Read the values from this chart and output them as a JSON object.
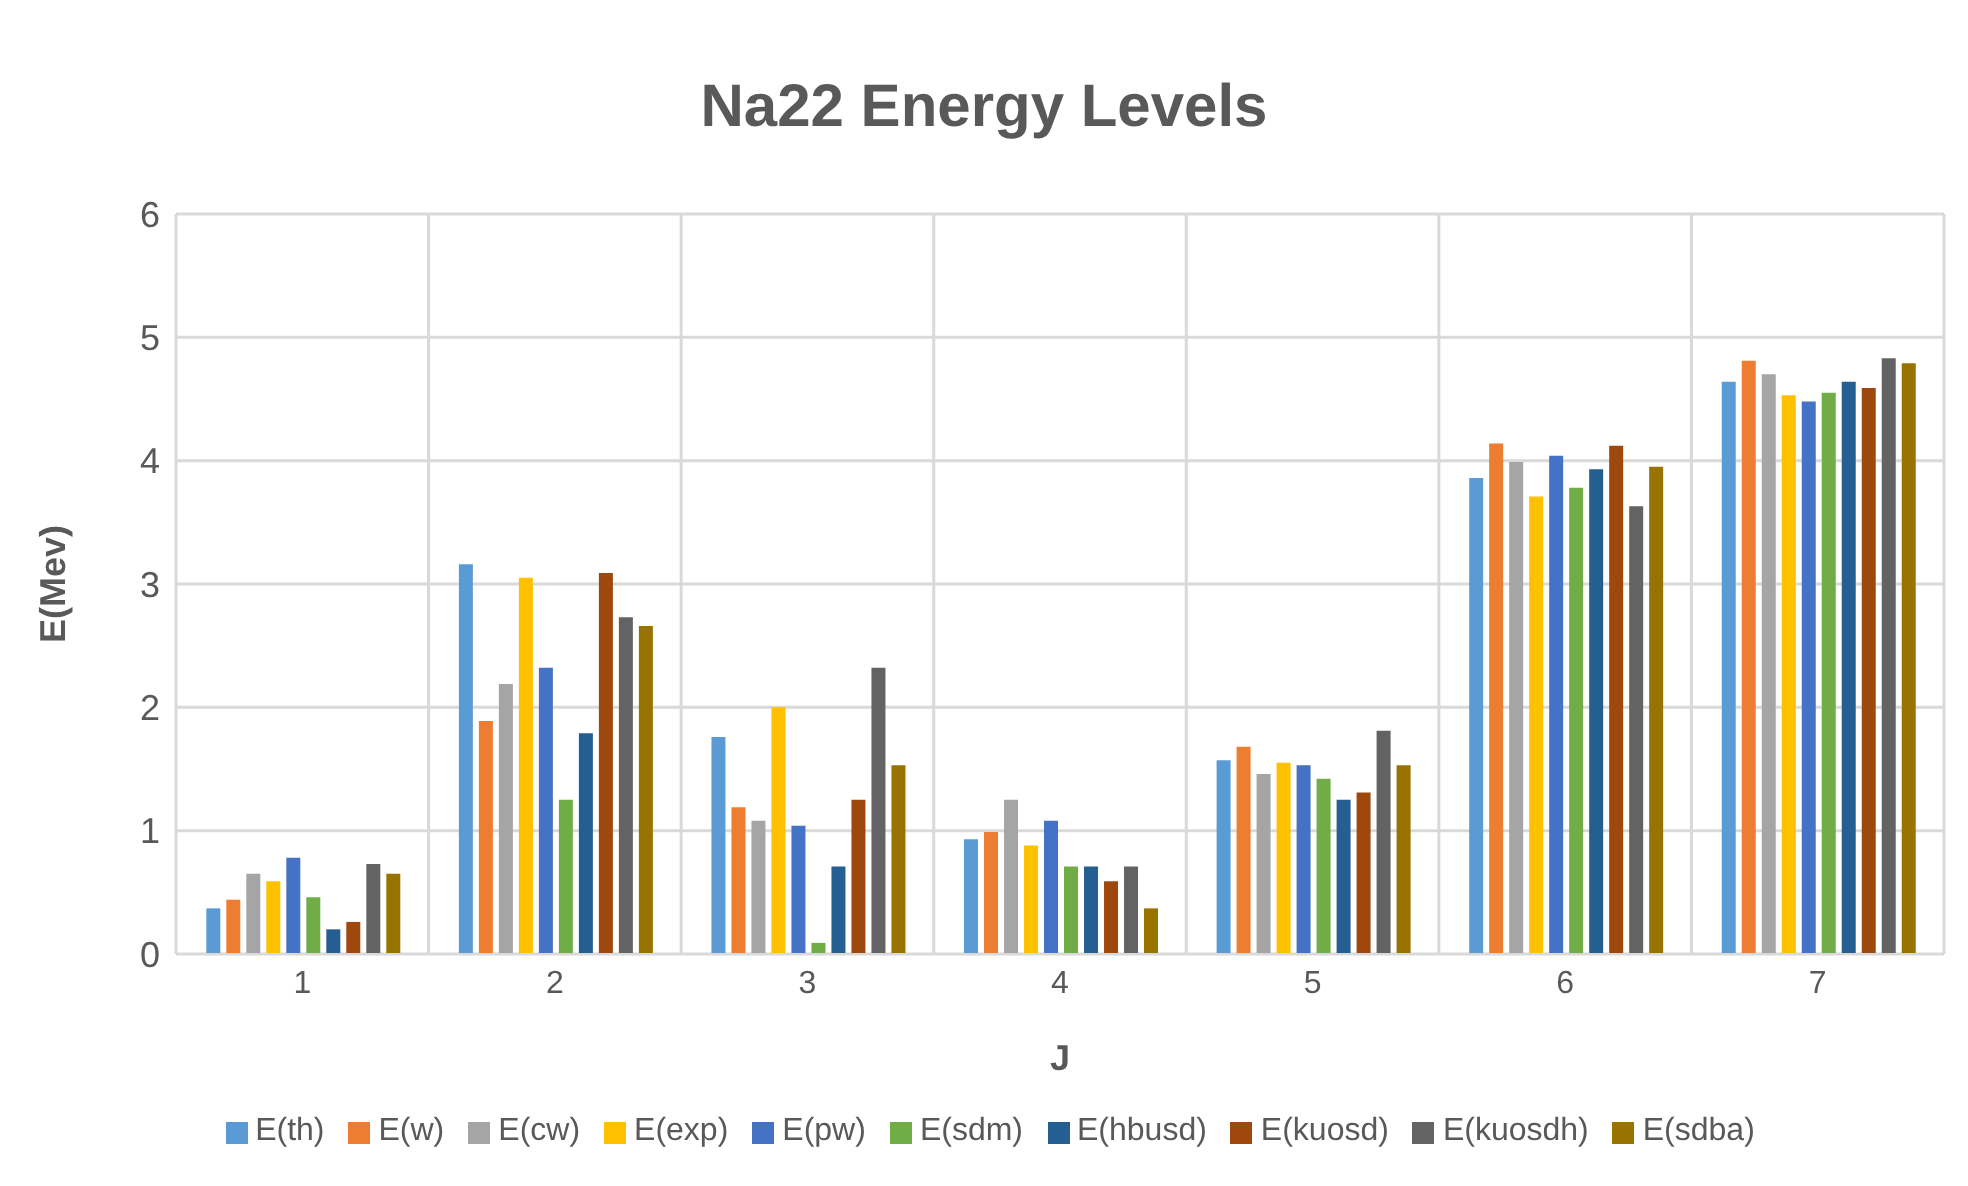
{
  "chart_data": {
    "type": "bar",
    "title": "Na22 Energy Levels",
    "xlabel": "J",
    "ylabel": "E(Mev)",
    "categories": [
      "1",
      "2",
      "3",
      "4",
      "5",
      "6",
      "7"
    ],
    "series": [
      {
        "name": "E(th)",
        "color": "#5b9bd5",
        "values": [
          0.37,
          3.16,
          1.76,
          0.93,
          1.57,
          3.86,
          4.64
        ]
      },
      {
        "name": "E(w)",
        "color": "#ed7d31",
        "values": [
          0.44,
          1.89,
          1.19,
          0.99,
          1.68,
          4.14,
          4.81
        ]
      },
      {
        "name": "E(cw)",
        "color": "#a5a5a5",
        "values": [
          0.65,
          2.19,
          1.08,
          1.25,
          1.46,
          3.99,
          4.7
        ]
      },
      {
        "name": "E(exp)",
        "color": "#ffc000",
        "values": [
          0.59,
          3.05,
          2.0,
          0.88,
          1.55,
          3.71,
          4.53
        ]
      },
      {
        "name": "E(pw)",
        "color": "#4472c4",
        "values": [
          0.78,
          2.32,
          1.04,
          1.08,
          1.53,
          4.04,
          4.48
        ]
      },
      {
        "name": "E(sdm)",
        "color": "#70ad47",
        "values": [
          0.46,
          1.25,
          0.09,
          0.71,
          1.42,
          3.78,
          4.55
        ]
      },
      {
        "name": "E(hbusd)",
        "color": "#255e91",
        "values": [
          0.2,
          1.79,
          0.71,
          0.71,
          1.25,
          3.93,
          4.64
        ]
      },
      {
        "name": "E(kuosd)",
        "color": "#9e480e",
        "values": [
          0.26,
          3.09,
          1.25,
          0.59,
          1.31,
          4.12,
          4.59
        ]
      },
      {
        "name": "E(kuosdh)",
        "color": "#636363",
        "values": [
          0.73,
          2.73,
          2.32,
          0.71,
          1.81,
          3.63,
          4.83
        ]
      },
      {
        "name": "E(sdba)",
        "color": "#997300",
        "values": [
          0.65,
          2.66,
          1.53,
          0.37,
          1.53,
          3.95,
          4.79
        ]
      }
    ],
    "ylim": [
      0,
      6
    ],
    "yticks": [
      0,
      1,
      2,
      3,
      4,
      5,
      6
    ],
    "grid": true,
    "legend": "bottom"
  }
}
